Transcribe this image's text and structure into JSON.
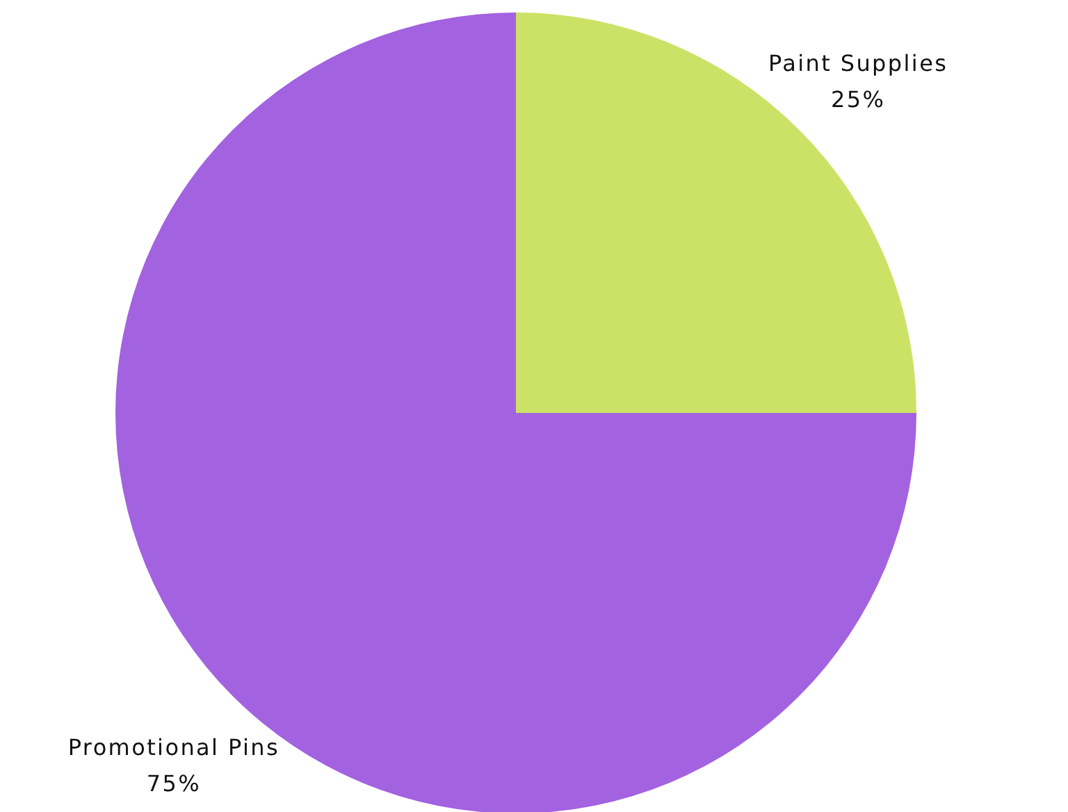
{
  "chart_data": {
    "type": "pie",
    "categories": [
      "Paint Supplies",
      "Promotional Pins"
    ],
    "values": [
      25,
      75
    ],
    "value_labels": [
      "25%",
      "75%"
    ],
    "colors": [
      "#cce266",
      "#a362e0"
    ]
  }
}
